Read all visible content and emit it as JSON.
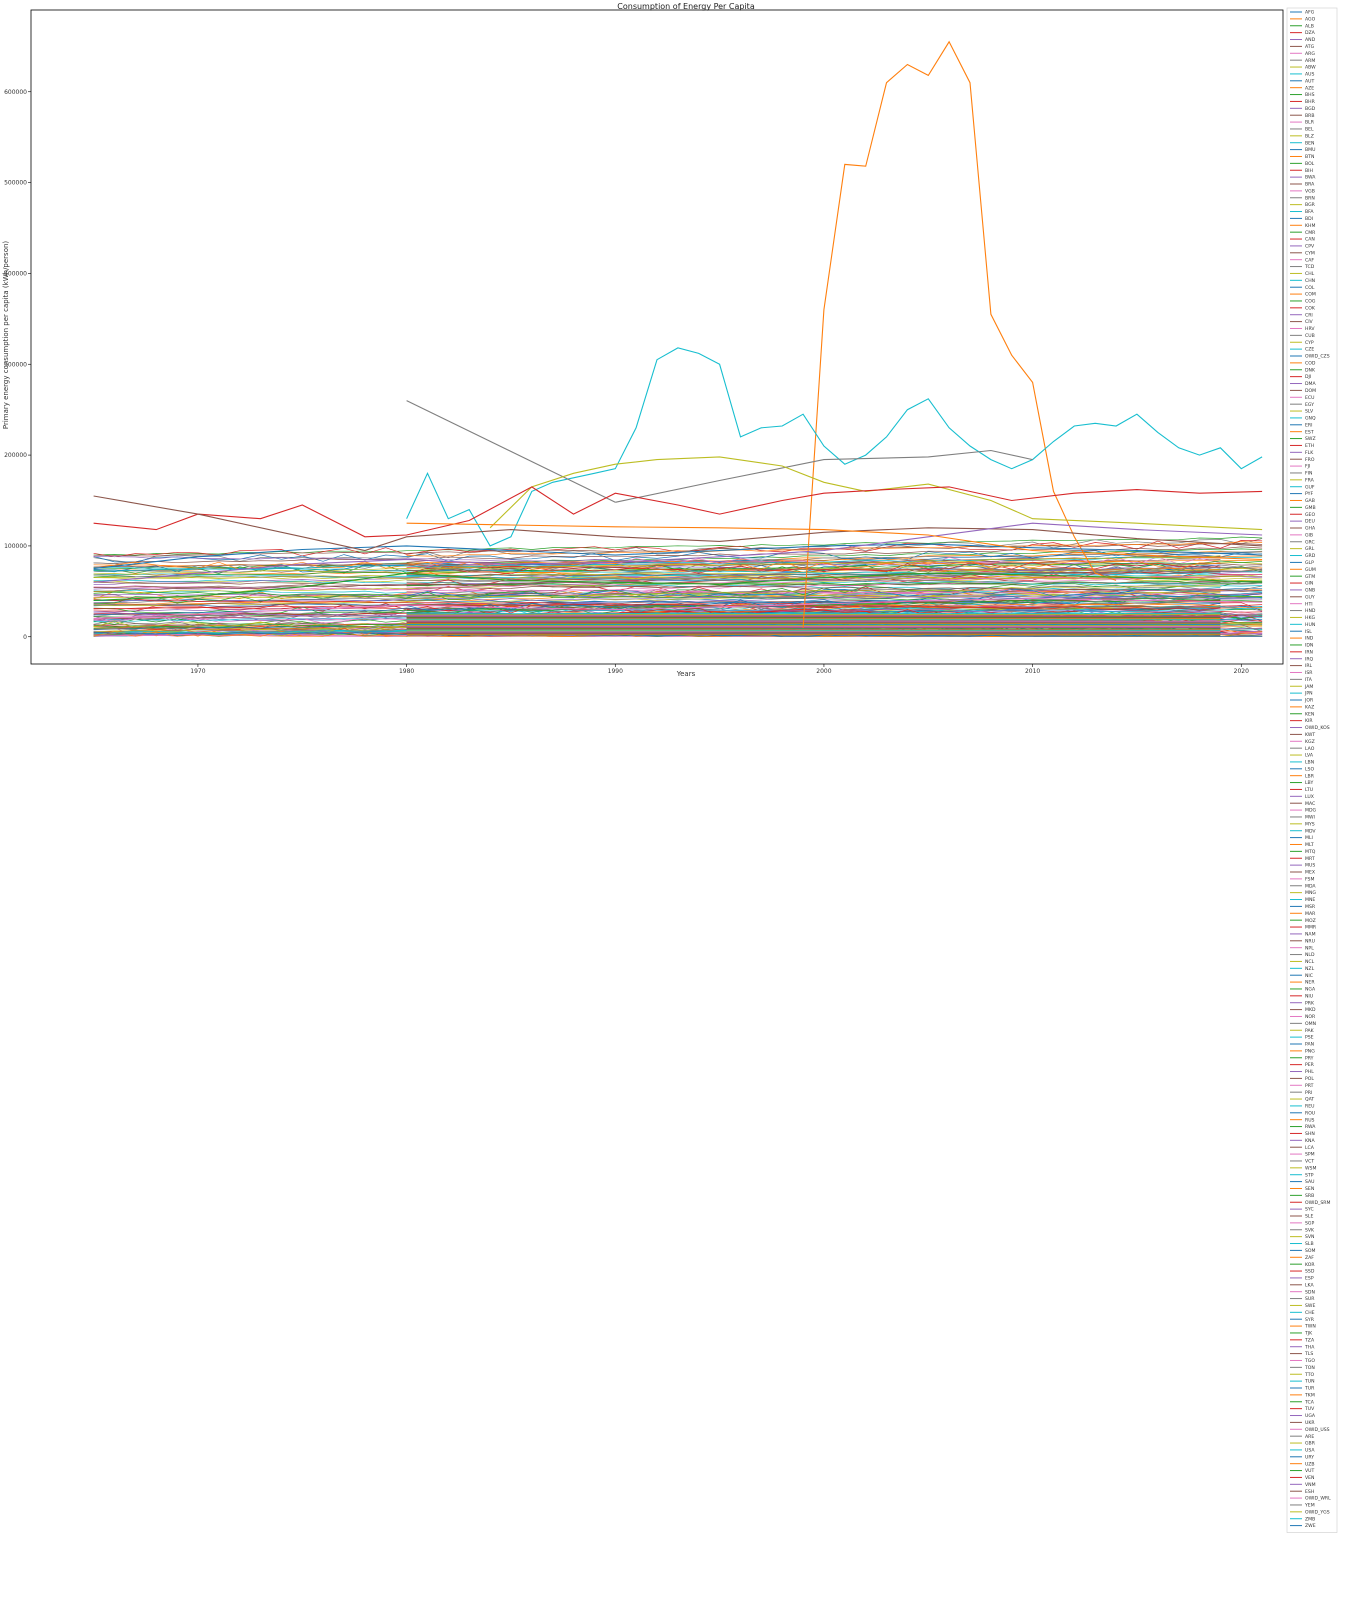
{
  "chart_data": {
    "type": "line",
    "title": "Consumption of Energy Per Capita",
    "xlabel": "Years",
    "ylabel": "Primary energy consumption per capita (kWh/person)",
    "xlim": [
      1962,
      2022
    ],
    "ylim": [
      -30000,
      690000
    ],
    "x_ticks": [
      1970,
      1980,
      1990,
      2000,
      2010,
      2020
    ],
    "x_tick_labels": [
      "1970",
      "1980",
      "1990",
      "2000",
      "2010",
      "2020"
    ],
    "y_ticks": [
      0,
      100000,
      200000,
      300000,
      400000,
      500000,
      600000
    ],
    "y_tick_labels": [
      "0",
      "100000",
      "200000",
      "300000",
      "400000",
      "500000",
      "600000"
    ],
    "grid": false,
    "legend_position": "right",
    "highlighted_series": [
      {
        "color": "#ff7f0e",
        "x": [
          1999,
          2000,
          2001,
          2002,
          2003,
          2004,
          2005,
          2006,
          2007,
          2008,
          2009,
          2010,
          2011,
          2012,
          2013,
          2014
        ],
        "y": [
          10000,
          360000,
          520000,
          518000,
          610000,
          630000,
          618000,
          655000,
          610000,
          355000,
          310000,
          280000,
          160000,
          110000,
          70000,
          62000
        ]
      },
      {
        "color": "#17becf",
        "x": [
          1980,
          1981,
          1982,
          1983,
          1984,
          1985,
          1986,
          1987,
          1988,
          1989,
          1990,
          1991,
          1992,
          1993,
          1994,
          1995,
          1996,
          1997,
          1998,
          1999,
          2000,
          2001,
          2002,
          2003,
          2004,
          2005,
          2006,
          2007,
          2008,
          2009,
          2010,
          2011,
          2012,
          2013,
          2014,
          2015,
          2016,
          2017,
          2018,
          2019,
          2020,
          2021
        ],
        "y": [
          130000,
          180000,
          130000,
          140000,
          100000,
          110000,
          160000,
          170000,
          175000,
          180000,
          185000,
          230000,
          305000,
          318000,
          312000,
          300000,
          220000,
          230000,
          232000,
          245000,
          210000,
          190000,
          200000,
          220000,
          250000,
          262000,
          230000,
          210000,
          195000,
          185000,
          195000,
          215000,
          232000,
          235000,
          232000,
          245000,
          225000,
          208000,
          200000,
          208000,
          185000,
          198000
        ]
      },
      {
        "color": "#1f77b4",
        "x": [
          1965,
          1970,
          1975,
          1980,
          1985,
          1990,
          1995,
          2000,
          2005,
          2010,
          2015,
          2021
        ],
        "y": [
          75000,
          88000,
          96000,
          100000,
          95000,
          90000,
          95000,
          100000,
          102000,
          98000,
          95000,
          90000
        ]
      },
      {
        "color": "#7f7f7f",
        "x": [
          1980,
          1990
        ],
        "y": [
          260000,
          148000
        ]
      },
      {
        "color": "#7f7f7f",
        "x": [
          1990,
          1995,
          2000,
          2005,
          2008,
          2010
        ],
        "y": [
          148000,
          172000,
          195000,
          198000,
          205000,
          195000
        ]
      },
      {
        "color": "#bcbd22",
        "x": [
          1984,
          1986,
          1988,
          1990,
          1992,
          1995,
          1998,
          2000,
          2002,
          2005,
          2008,
          2010,
          2015,
          2021
        ],
        "y": [
          120000,
          165000,
          180000,
          190000,
          195000,
          198000,
          188000,
          170000,
          160000,
          168000,
          150000,
          130000,
          125000,
          118000
        ]
      },
      {
        "color": "#d62728",
        "x": [
          1965,
          1968,
          1970,
          1973,
          1975,
          1978,
          1980,
          1983,
          1986,
          1988,
          1990,
          1993,
          1995,
          1998,
          2000,
          2003,
          2006,
          2009,
          2012,
          2015,
          2018,
          2021
        ],
        "y": [
          125000,
          118000,
          135000,
          130000,
          145000,
          110000,
          112000,
          128000,
          165000,
          135000,
          158000,
          145000,
          135000,
          150000,
          158000,
          162000,
          165000,
          150000,
          158000,
          162000,
          158000,
          160000
        ]
      },
      {
        "color": "#8c564b",
        "x": [
          1965,
          1970,
          1975,
          1978,
          1980,
          1985,
          1990,
          1995,
          2000,
          2005,
          2010,
          2015,
          2021
        ],
        "y": [
          155000,
          135000,
          110000,
          95000,
          110000,
          118000,
          110000,
          105000,
          115000,
          120000,
          118000,
          108000,
          100000
        ]
      },
      {
        "color": "#2ca02c",
        "x": [
          1965,
          1970,
          1975,
          1980,
          1985,
          1990,
          1995,
          2000,
          2005,
          2010,
          2015,
          2021
        ],
        "y": [
          40000,
          45000,
          55000,
          70000,
          62000,
          60000,
          58000,
          65000,
          70000,
          68000,
          65000,
          60000
        ]
      },
      {
        "color": "#9467bd",
        "x": [
          1965,
          1970,
          1975,
          1980,
          1985,
          1990,
          1995,
          2000,
          2005,
          2010,
          2015,
          2021
        ],
        "y": [
          60000,
          70000,
          80000,
          85000,
          80000,
          82000,
          88000,
          95000,
          110000,
          125000,
          118000,
          112000
        ]
      },
      {
        "color": "#e377c2",
        "x": [
          1965,
          1970,
          1975,
          1980,
          1985,
          1990,
          1995,
          2000,
          2005,
          2010,
          2015,
          2021
        ],
        "y": [
          20000,
          25000,
          30000,
          35000,
          32000,
          30000,
          33000,
          36000,
          40000,
          42000,
          40000,
          38000
        ]
      },
      {
        "color": "#ff7f0e",
        "x": [
          1980,
          1985,
          1990,
          1995,
          2000,
          2005,
          2010,
          2015,
          2021
        ],
        "y": [
          125000,
          123000,
          121000,
          120000,
          118000,
          112000,
          95000,
          90000,
          85000
        ]
      }
    ],
    "legend_entries": [
      "AFG",
      "AGO",
      "ALB",
      "DZA",
      "AND",
      "ATG",
      "ARG",
      "ARM",
      "ABW",
      "AUS",
      "AUT",
      "AZE",
      "BHS",
      "BHR",
      "BGD",
      "BRB",
      "BLR",
      "BEL",
      "BLZ",
      "BEN",
      "BMU",
      "BTN",
      "BOL",
      "BIH",
      "BWA",
      "BRA",
      "VGB",
      "BRN",
      "BGR",
      "BFA",
      "BDI",
      "KHM",
      "CMR",
      "CAN",
      "CPV",
      "CYM",
      "CAF",
      "TCD",
      "CHL",
      "CHN",
      "COL",
      "COM",
      "COG",
      "COK",
      "CRI",
      "CIV",
      "HRV",
      "CUB",
      "CYP",
      "CZE",
      "OWID_CZS",
      "COD",
      "DNK",
      "DJI",
      "DMA",
      "DOM",
      "ECU",
      "EGY",
      "SLV",
      "GNQ",
      "ERI",
      "EST",
      "SWZ",
      "ETH",
      "FLK",
      "FRO",
      "FJI",
      "FIN",
      "FRA",
      "GUF",
      "PYF",
      "GAB",
      "GMB",
      "GEO",
      "DEU",
      "GHA",
      "GIB",
      "GRC",
      "GRL",
      "GRD",
      "GLP",
      "GUM",
      "GTM",
      "GIN",
      "GNB",
      "GUY",
      "HTI",
      "HND",
      "HKG",
      "HUN",
      "ISL",
      "IND",
      "IDN",
      "IRN",
      "IRQ",
      "IRL",
      "ISR",
      "ITA",
      "JAM",
      "JPN",
      "JOR",
      "KAZ",
      "KEN",
      "KIR",
      "OWID_KOS",
      "KWT",
      "KGZ",
      "LAO",
      "LVA",
      "LBN",
      "LSO",
      "LBR",
      "LBY",
      "LTU",
      "LUX",
      "MAC",
      "MDG",
      "MWI",
      "MYS",
      "MDV",
      "MLI",
      "MLT",
      "MTQ",
      "MRT",
      "MUS",
      "MEX",
      "FSM",
      "MDA",
      "MNG",
      "MNE",
      "MSR",
      "MAR",
      "MOZ",
      "MMR",
      "NAM",
      "NRU",
      "NPL",
      "NLD",
      "NCL",
      "NZL",
      "NIC",
      "NER",
      "NGA",
      "NIU",
      "PRK",
      "MKD",
      "NOR",
      "OMN",
      "PAK",
      "PSE",
      "PAN",
      "PNG",
      "PRY",
      "PER",
      "PHL",
      "POL",
      "PRT",
      "PRI",
      "QAT",
      "REU",
      "ROU",
      "RUS",
      "RWA",
      "SHN",
      "KNA",
      "LCA",
      "SPM",
      "VCT",
      "WSM",
      "STP",
      "SAU",
      "SEN",
      "SRB",
      "OWID_SRM",
      "SYC",
      "SLE",
      "SGP",
      "SVK",
      "SVN",
      "SLB",
      "SOM",
      "ZAF",
      "KOR",
      "SSD",
      "ESP",
      "LKA",
      "SDN",
      "SUR",
      "SWE",
      "CHE",
      "SYR",
      "TWN",
      "TJK",
      "TZA",
      "THA",
      "TLS",
      "TGO",
      "TON",
      "TTO",
      "TUN",
      "TUR",
      "TKM",
      "TCA",
      "TUV",
      "UGA",
      "UKR",
      "OWID_USS",
      "ARE",
      "GBR",
      "USA",
      "URY",
      "UZB",
      "VUT",
      "VEN",
      "VNM",
      "ESH",
      "OWID_WRL",
      "YEM",
      "OWID_YGS",
      "ZMB",
      "ZWE"
    ]
  },
  "colors": {
    "cycle": [
      "#1f77b4",
      "#ff7f0e",
      "#2ca02c",
      "#d62728",
      "#9467bd",
      "#8c564b",
      "#e377c2",
      "#7f7f7f",
      "#bcbd22",
      "#17becf"
    ],
    "axis": "#000000",
    "legend_border": "#cccccc"
  }
}
